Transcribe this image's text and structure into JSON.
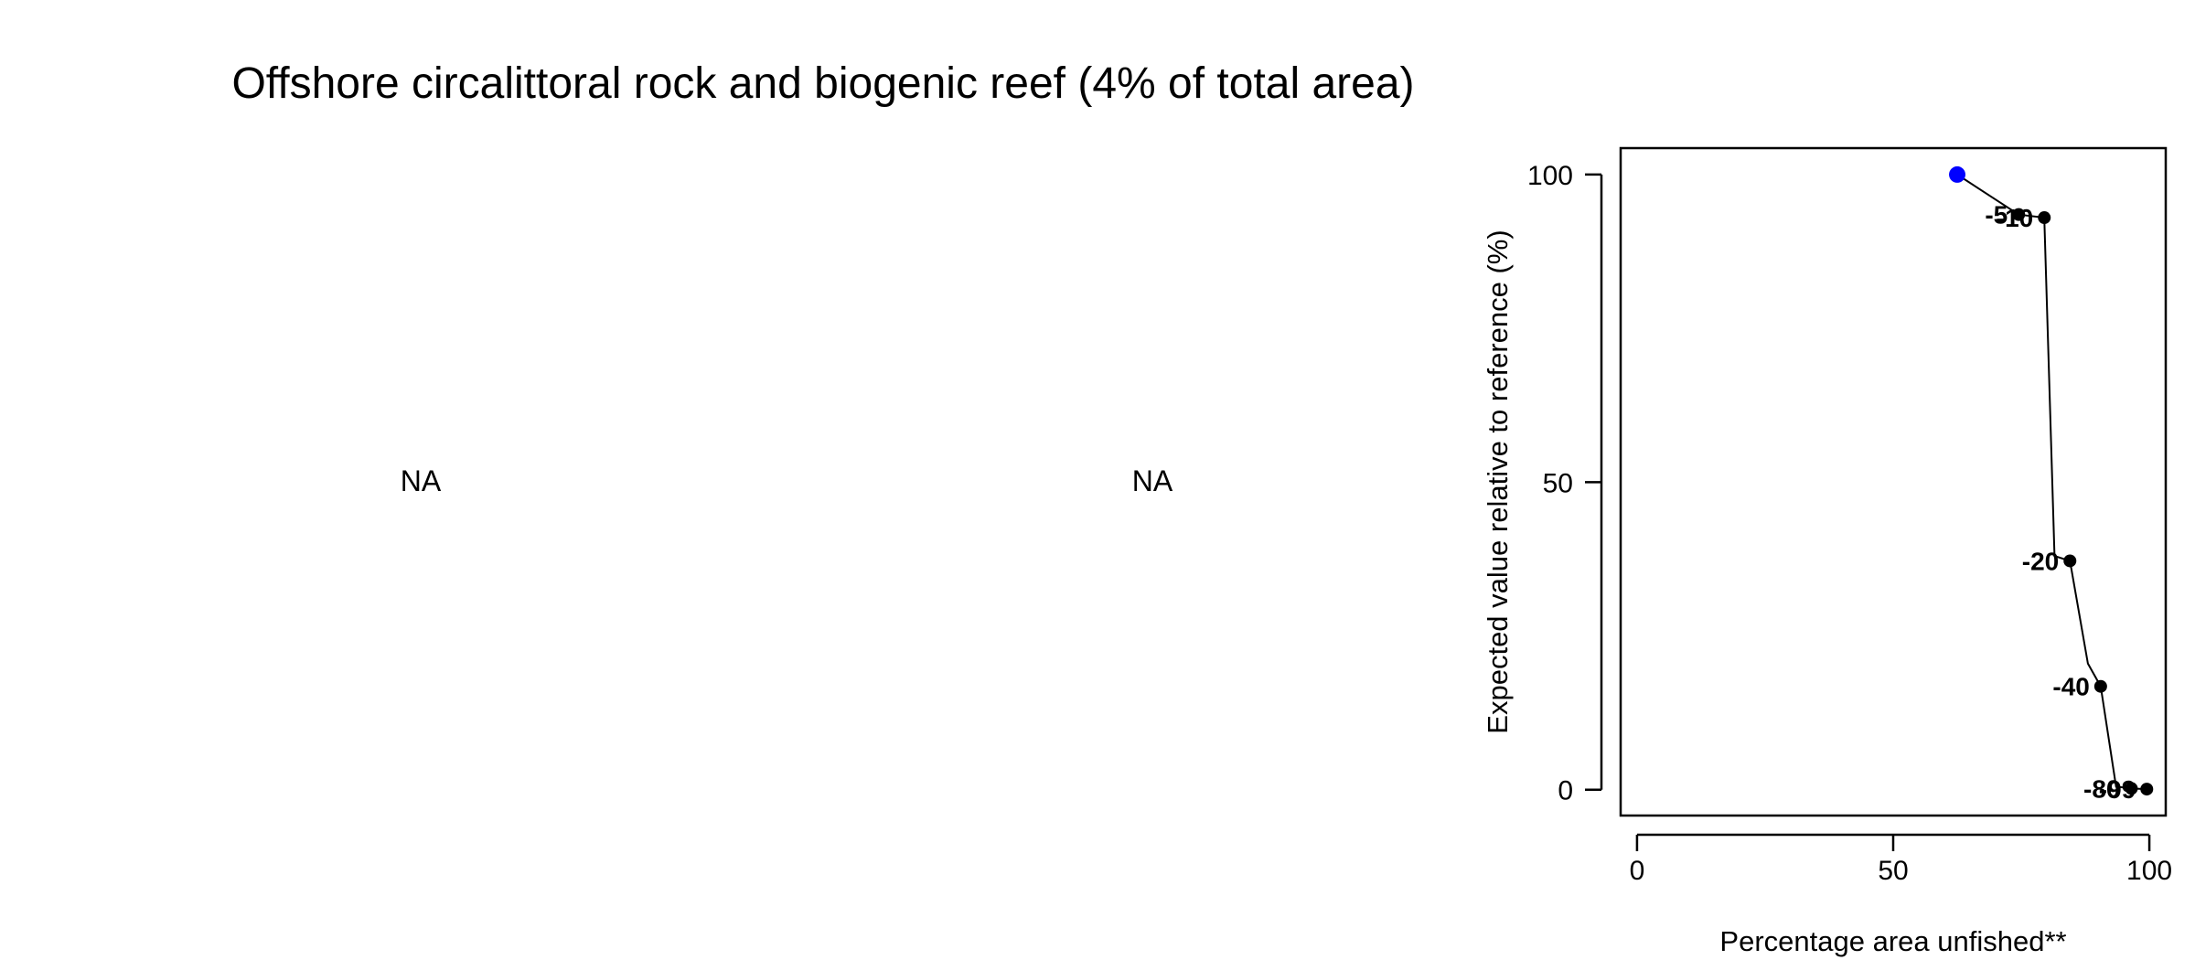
{
  "title": "Offshore circalittoral rock and biogenic reef (4% of total area)",
  "panels": {
    "left_text": "NA",
    "middle_text": "NA"
  },
  "colors": {
    "reference_point": "#0000ff",
    "points": "#000000",
    "line": "#000000"
  },
  "chart_data": {
    "type": "line",
    "title": "",
    "xlabel": "Percentage area unfished**",
    "ylabel": "Expected value relative to reference (%)",
    "xlim": [
      -3.2,
      103.2
    ],
    "ylim": [
      -4.2,
      104.3
    ],
    "x_ticks": [
      0,
      50,
      100
    ],
    "y_ticks": [
      0,
      50,
      100
    ],
    "grid": false,
    "legend": "none",
    "reference_point": {
      "x": 62.5,
      "y": 100
    },
    "points": [
      {
        "x": 74.5,
        "y": 93.5,
        "label": "-5"
      },
      {
        "x": 79.5,
        "y": 93.0,
        "label": "-10"
      },
      {
        "x": 84.5,
        "y": 37.2,
        "label": "-20"
      },
      {
        "x": 90.5,
        "y": 16.8,
        "label": "-40"
      },
      {
        "x": 96.5,
        "y": 0.2,
        "label": "-80"
      },
      {
        "x": 99.5,
        "y": 0.1,
        "label": "-99"
      }
    ],
    "line": [
      [
        62.5,
        100
      ],
      [
        74.5,
        93.5
      ],
      [
        79.5,
        93.0
      ],
      [
        81.5,
        38.0
      ],
      [
        84.5,
        37.2
      ],
      [
        88.0,
        20.5
      ],
      [
        90.5,
        16.8
      ],
      [
        93.5,
        0.5
      ],
      [
        96.5,
        0.2
      ],
      [
        99.5,
        0.1
      ]
    ]
  }
}
